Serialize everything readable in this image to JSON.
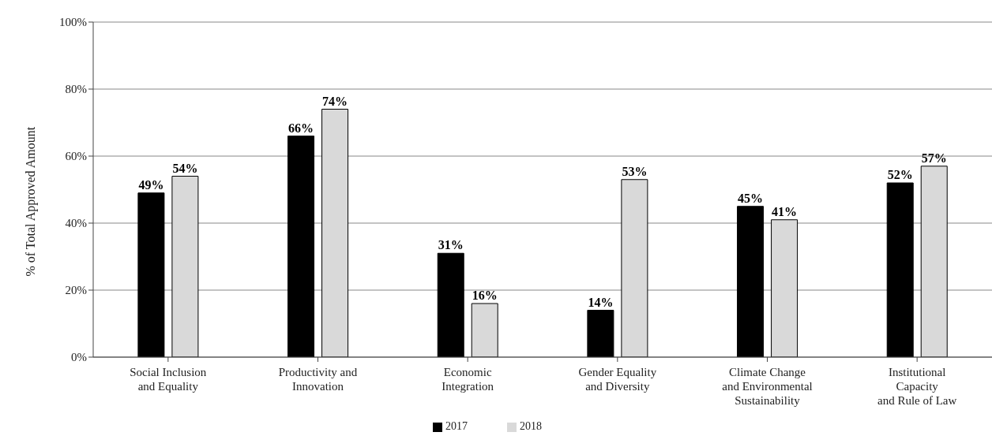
{
  "chart_data": {
    "type": "bar",
    "ylabel": "% of Total Approved Amount",
    "categories": [
      "Social Inclusion\nand Equality",
      "Productivity and\nInnovation",
      "Economic\nIntegration",
      "Gender Equality\nand Diversity",
      "Climate Change\nand Environmental\nSustainability",
      "Institutional\nCapacity\nand Rule of Law"
    ],
    "series": [
      {
        "name": "2017",
        "color": "#000000",
        "values": [
          49,
          66,
          31,
          14,
          45,
          52
        ],
        "value_labels": [
          "49%",
          "66%",
          "31%",
          "14%",
          "45%",
          "52%"
        ]
      },
      {
        "name": "2018",
        "color": "#d9d9d9",
        "values": [
          54,
          74,
          16,
          53,
          41,
          57
        ],
        "value_labels": [
          "54%",
          "74%",
          "16%",
          "53%",
          "41%",
          "57%"
        ]
      }
    ],
    "ylim": [
      0,
      100
    ],
    "yticks": [
      {
        "value": 0,
        "label": "0%"
      },
      {
        "value": 20,
        "label": "20%"
      },
      {
        "value": 40,
        "label": "40%"
      },
      {
        "value": 60,
        "label": "60%"
      },
      {
        "value": 80,
        "label": "80%"
      },
      {
        "value": 100,
        "label": "100%"
      }
    ],
    "grid": "y",
    "legend": "bottom"
  }
}
